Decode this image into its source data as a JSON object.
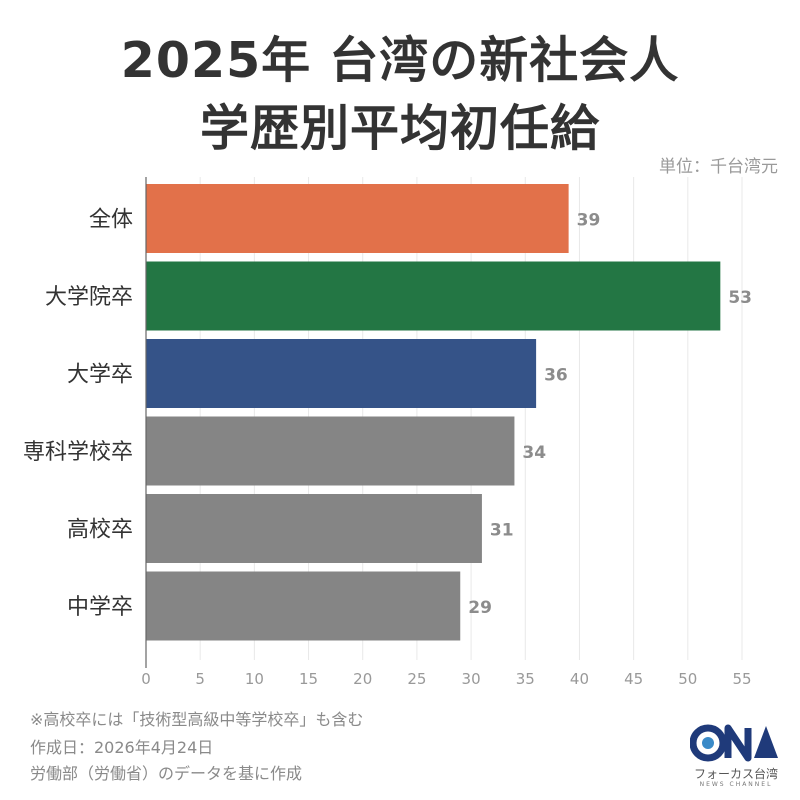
{
  "title_line1": "2025年 台湾の新社会人",
  "title_line2": "学歴別平均初任給",
  "unit": "単位：千台湾元",
  "chart_data": {
    "type": "bar",
    "orientation": "horizontal",
    "categories": [
      "全体",
      "大学院卒",
      "大学卒",
      "専科学校卒",
      "高校卒",
      "中学卒"
    ],
    "values": [
      39,
      53,
      36,
      34,
      31,
      29
    ],
    "colors": [
      "#e2714a",
      "#237644",
      "#355388",
      "#858585",
      "#858585",
      "#858585"
    ],
    "xlim": [
      0,
      55
    ],
    "xticks": [
      0,
      5,
      10,
      15,
      20,
      25,
      30,
      35,
      40,
      45,
      50,
      55
    ],
    "grid": true
  },
  "footnotes": [
    "※高校卒には「技術型高級中等学校卒」も含む",
    "作成日：2026年4月24日",
    "労働部（労働省）のデータを基に作成"
  ],
  "logo": {
    "text": "CNA",
    "name": "フォーカス台湾",
    "sub": "NEWS CHANNEL",
    "color": "#1f3a7a"
  }
}
